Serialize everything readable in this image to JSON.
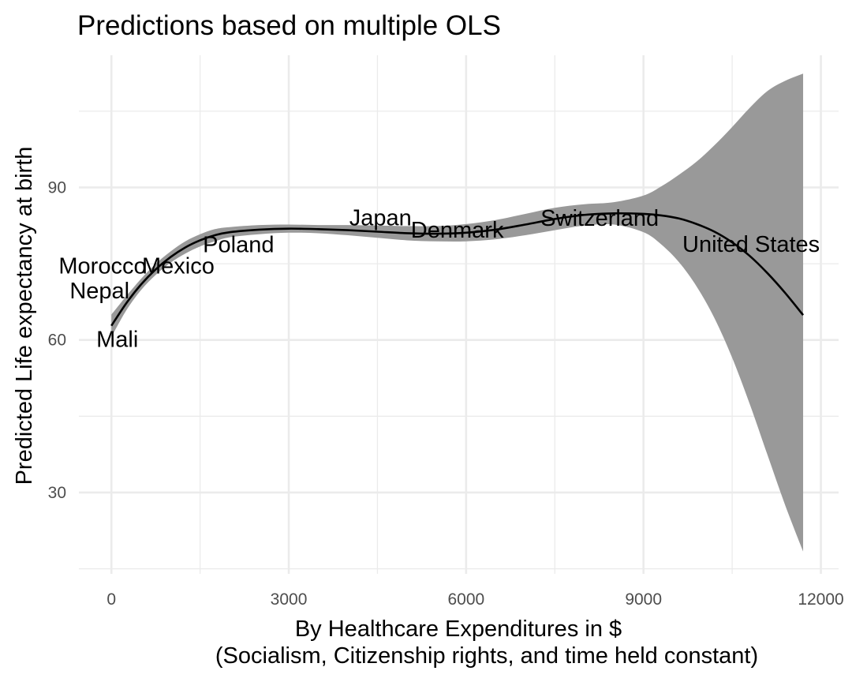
{
  "chart_data": {
    "type": "line",
    "title": "Predictions based on multiple OLS",
    "xlabel": "By Healthcare Expenditures in $",
    "xlabel_sub": "(Socialism, Citizenship rights, and time held constant)",
    "ylabel": "Predicted Life expectancy at birth",
    "xlim": [
      -550,
      12300
    ],
    "ylim": [
      14,
      116
    ],
    "x_ticks": [
      0,
      3000,
      6000,
      9000,
      12000
    ],
    "x_tick_labels": [
      "0",
      "3000",
      "6000",
      "9000",
      "12000"
    ],
    "y_ticks": [
      30,
      60,
      90
    ],
    "y_tick_labels": [
      "30",
      "60",
      "90"
    ],
    "grid": true,
    "legend": "none",
    "fit_color": "#000000",
    "ribbon_color": "#999999",
    "fit": {
      "x": [
        0,
        250,
        500,
        750,
        1000,
        1250,
        1500,
        1750,
        2000,
        2500,
        3000,
        3500,
        4000,
        4500,
        5000,
        5500,
        6000,
        6500,
        7000,
        7500,
        8000,
        8500,
        9000,
        9300,
        9600,
        9900,
        10200,
        10500,
        10800,
        11100,
        11400,
        11700
      ],
      "y": [
        62.8,
        67.2,
        70.9,
        73.9,
        76.3,
        78.2,
        79.6,
        80.6,
        81.2,
        81.7,
        81.9,
        81.8,
        81.6,
        81.3,
        81.0,
        80.9,
        81.1,
        81.7,
        82.7,
        83.8,
        84.6,
        84.9,
        84.8,
        84.5,
        83.9,
        82.8,
        81.3,
        79.2,
        76.5,
        73.1,
        69.2,
        64.9
      ],
      "lower": [
        60.6,
        65.8,
        69.8,
        72.8,
        75.2,
        77.0,
        78.4,
        79.4,
        80.2,
        80.8,
        81.1,
        81.0,
        80.6,
        80.1,
        79.6,
        79.4,
        79.4,
        79.8,
        80.6,
        81.6,
        82.5,
        82.7,
        81.2,
        78.8,
        75.3,
        70.5,
        64.3,
        56.5,
        47.3,
        37.3,
        27.4,
        18.4
      ],
      "upper": [
        65.0,
        68.6,
        72.0,
        75.0,
        77.4,
        79.4,
        80.8,
        81.8,
        82.2,
        82.6,
        82.7,
        82.6,
        82.6,
        82.5,
        82.4,
        82.4,
        82.8,
        83.6,
        84.8,
        86.0,
        86.7,
        87.1,
        88.4,
        90.2,
        92.5,
        95.1,
        98.3,
        101.9,
        105.7,
        109.0,
        111.0,
        112.4
      ]
    },
    "labels": [
      {
        "text": "Mali",
        "x": 100,
        "y": 60.2
      },
      {
        "text": "Nepal",
        "x": -200,
        "y": 69.7
      },
      {
        "text": "Morocco",
        "x": -150,
        "y": 74.6
      },
      {
        "text": "Mexico",
        "x": 1130,
        "y": 74.6
      },
      {
        "text": "Poland",
        "x": 2150,
        "y": 78.8
      },
      {
        "text": "Japan",
        "x": 4550,
        "y": 84.1
      },
      {
        "text": "Denmark",
        "x": 5850,
        "y": 81.7
      },
      {
        "text": "Switzerland",
        "x": 8260,
        "y": 84.0
      },
      {
        "text": "United States",
        "x": 10820,
        "y": 78.9
      }
    ]
  }
}
